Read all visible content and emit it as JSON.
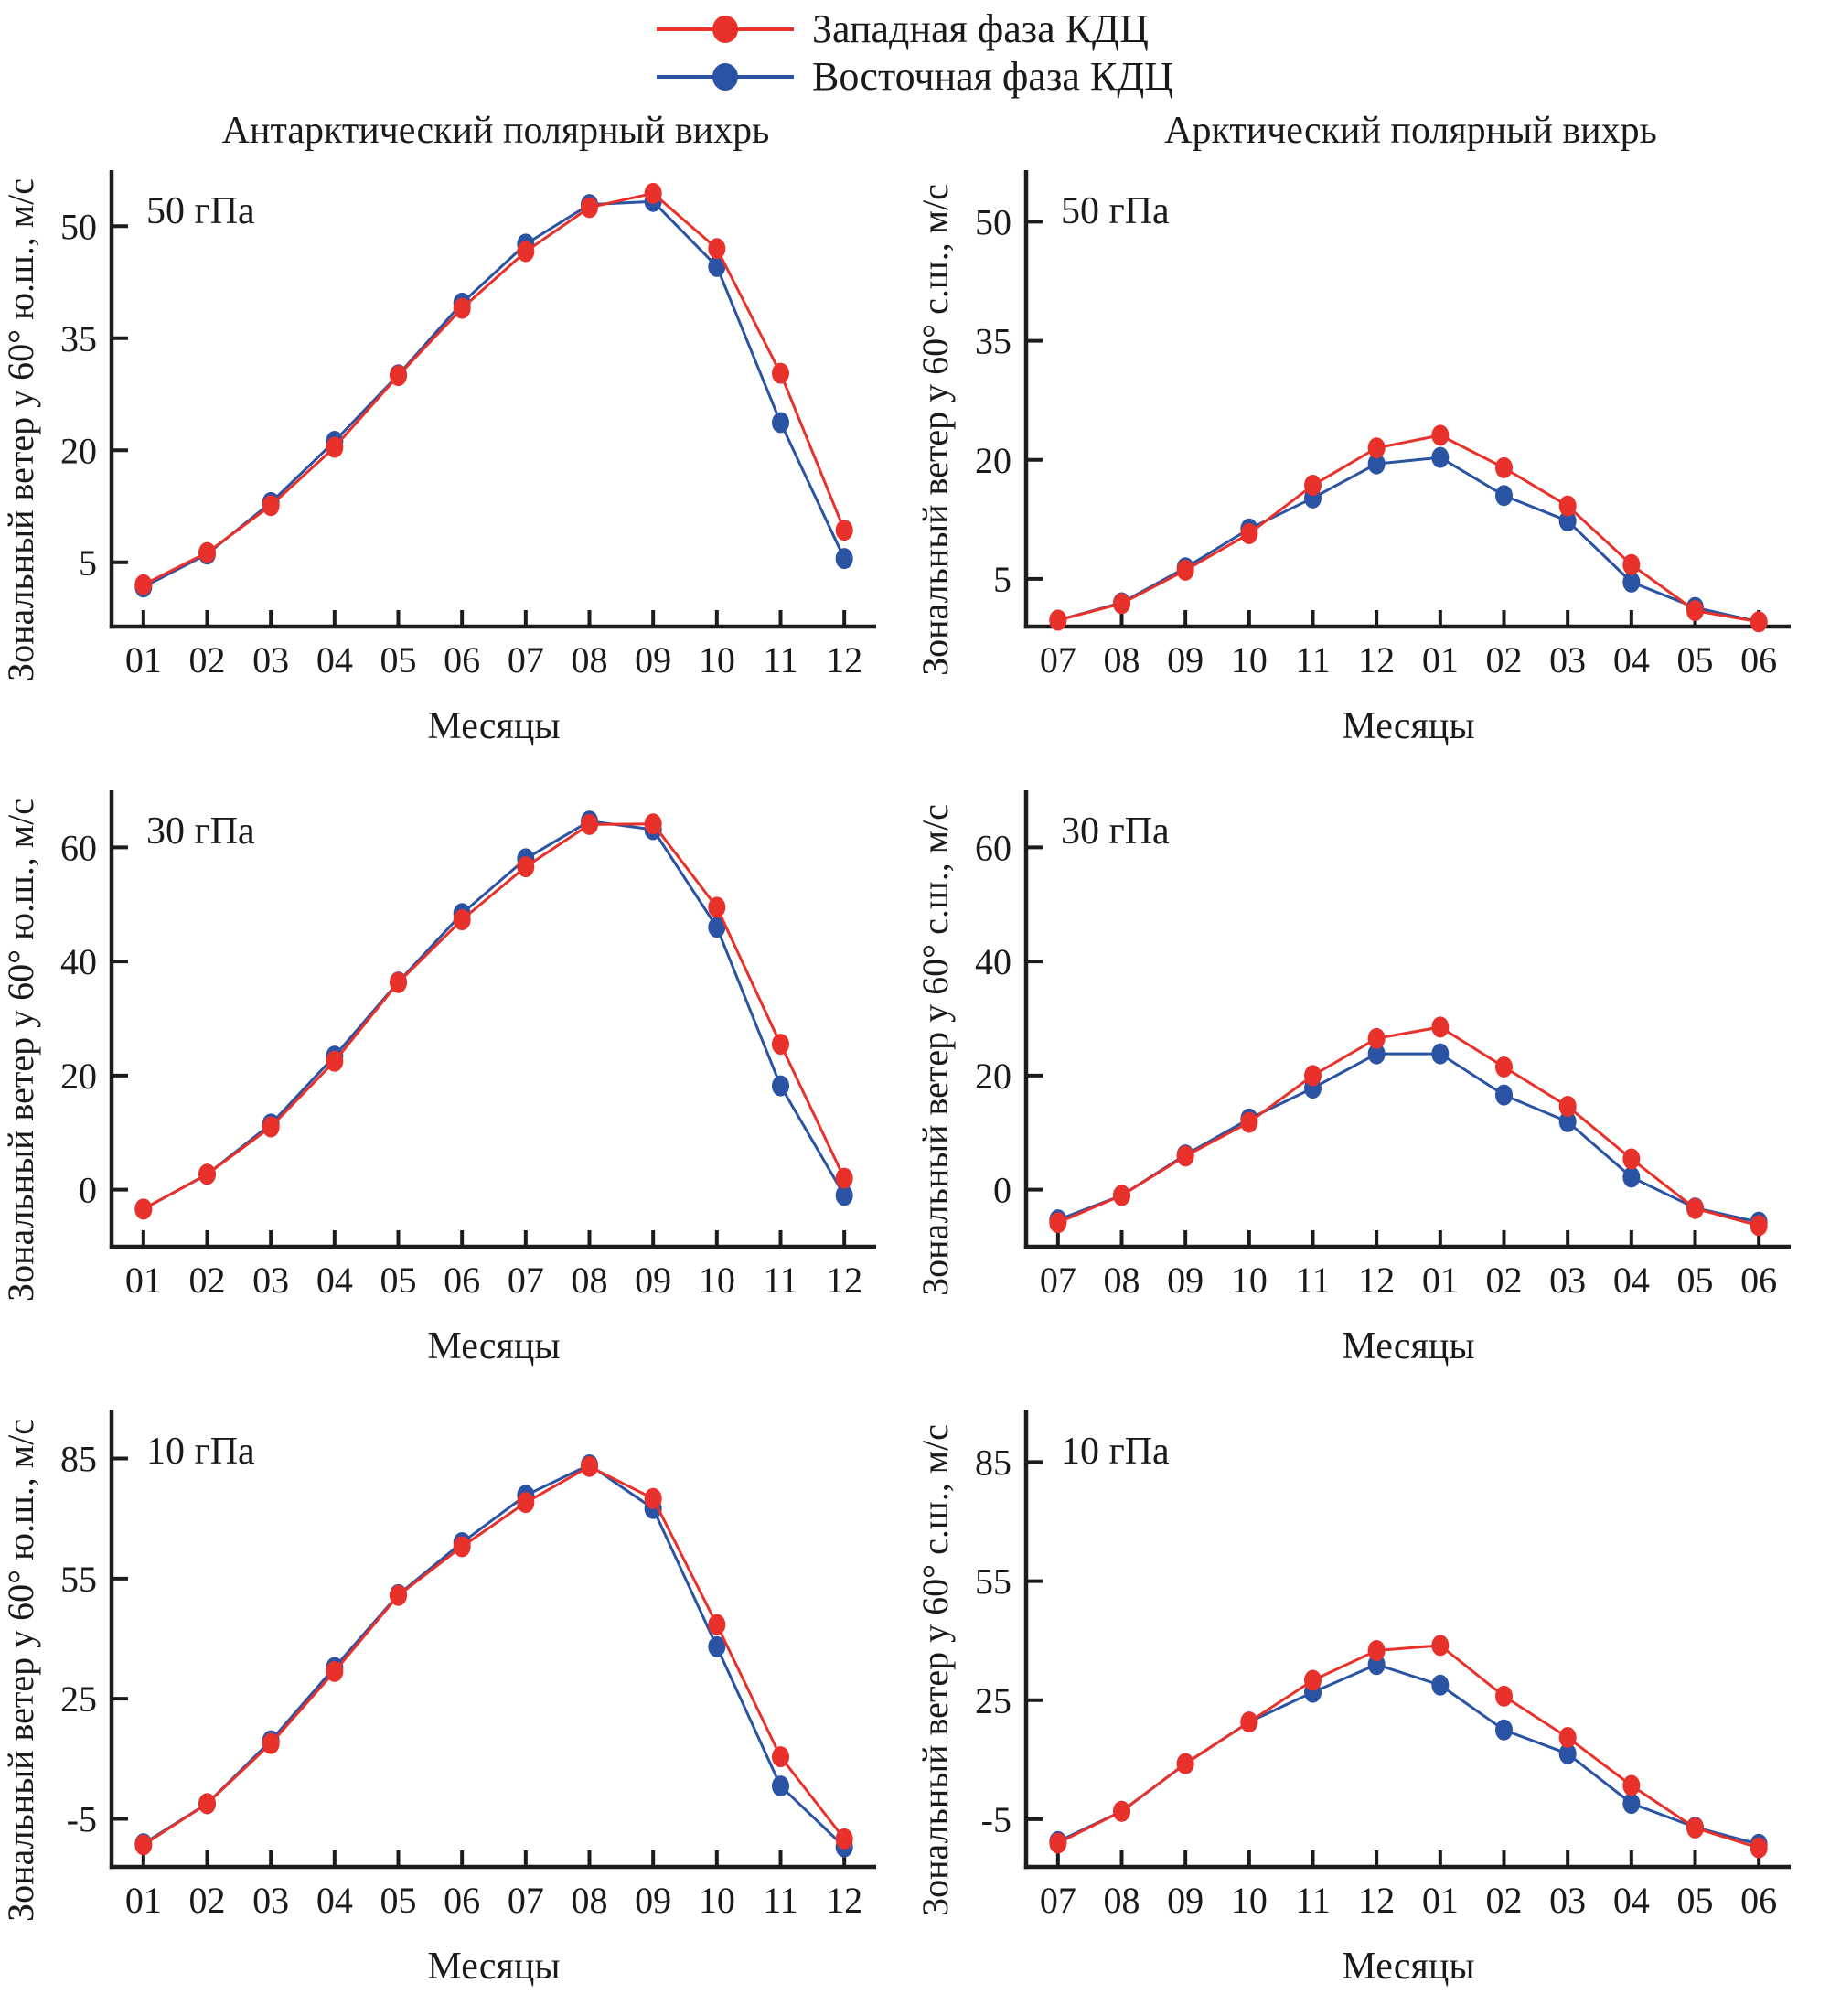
{
  "legend": {
    "items": [
      {
        "label": "Западная фаза КДЦ",
        "color": "#e8312a"
      },
      {
        "label": "Восточная фаза КДЦ",
        "color": "#2b53a3"
      }
    ]
  },
  "columns": [
    {
      "title": "Антарктический полярный вихрь"
    },
    {
      "title": "Арктический полярный вихрь"
    }
  ],
  "chart_data": [
    {
      "type": "line",
      "panel_label": "50 гПа",
      "ylabel": "Зональный ветер у 60° ю.ш., м/с",
      "xlabel": "Месяцы",
      "categories": [
        "01",
        "02",
        "03",
        "04",
        "05",
        "06",
        "07",
        "08",
        "09",
        "10",
        "11",
        "12"
      ],
      "yticks": [
        5,
        20,
        35,
        50
      ],
      "ylim": [
        -3.6,
        57.5
      ],
      "grid": false,
      "series": [
        {
          "name": "Западная фаза КДЦ",
          "color": "#e8312a",
          "values": [
            2.0,
            6.3,
            12.6,
            20.4,
            30.0,
            39.0,
            46.6,
            52.5,
            54.4,
            47.0,
            30.3,
            9.3
          ]
        },
        {
          "name": "Восточная фаза КДЦ",
          "color": "#2b53a3",
          "values": [
            1.7,
            6.1,
            13.0,
            21.2,
            30.1,
            39.7,
            47.6,
            52.9,
            53.3,
            44.6,
            23.7,
            5.5
          ]
        }
      ]
    },
    {
      "type": "line",
      "panel_label": "50 гПа",
      "ylabel": "Зональный ветер у 60° с.ш., м/с",
      "xlabel": "Месяцы",
      "categories": [
        "07",
        "08",
        "09",
        "10",
        "11",
        "12",
        "01",
        "02",
        "03",
        "04",
        "05",
        "06"
      ],
      "yticks": [
        5,
        20,
        35,
        50
      ],
      "ylim": [
        -1.0,
        56.5
      ],
      "grid": false,
      "series": [
        {
          "name": "Западная фаза КДЦ",
          "color": "#e8312a",
          "values": [
            -0.2,
            1.9,
            6.1,
            10.7,
            16.8,
            21.5,
            23.1,
            19.0,
            14.2,
            6.8,
            1.0,
            -0.4
          ]
        },
        {
          "name": "Восточная фаза КДЦ",
          "color": "#2b53a3",
          "values": [
            -0.2,
            2.0,
            6.4,
            11.3,
            15.2,
            19.5,
            20.3,
            15.5,
            12.3,
            4.6,
            1.4,
            -0.4
          ]
        }
      ]
    },
    {
      "type": "line",
      "panel_label": "30 гПа",
      "ylabel": "Зональный ветер у 60° ю.ш., м/с",
      "xlabel": "Месяцы",
      "categories": [
        "01",
        "02",
        "03",
        "04",
        "05",
        "06",
        "07",
        "08",
        "09",
        "10",
        "11",
        "12"
      ],
      "yticks": [
        0,
        20,
        40,
        60
      ],
      "ylim": [
        -10,
        70
      ],
      "grid": false,
      "series": [
        {
          "name": "Западная фаза КДЦ",
          "color": "#e8312a",
          "values": [
            -3.4,
            2.7,
            11.0,
            22.5,
            36.3,
            47.3,
            56.6,
            64.0,
            64.1,
            49.5,
            25.5,
            2.0
          ]
        },
        {
          "name": "Восточная фаза КДЦ",
          "color": "#2b53a3",
          "values": [
            -3.4,
            2.7,
            11.5,
            23.4,
            36.4,
            48.4,
            58.0,
            64.6,
            63.1,
            46.0,
            18.2,
            -1.0
          ]
        }
      ]
    },
    {
      "type": "line",
      "panel_label": "30 гПа",
      "ylabel": "Зональный ветер у 60° с.ш., м/с",
      "xlabel": "Месяцы",
      "categories": [
        "07",
        "08",
        "09",
        "10",
        "11",
        "12",
        "01",
        "02",
        "03",
        "04",
        "05",
        "06"
      ],
      "yticks": [
        0,
        20,
        40,
        60
      ],
      "ylim": [
        -10,
        70
      ],
      "grid": false,
      "series": [
        {
          "name": "Западная фаза КДЦ",
          "color": "#e8312a",
          "values": [
            -5.8,
            -1.0,
            5.9,
            11.8,
            20.0,
            26.5,
            28.5,
            21.5,
            14.6,
            5.4,
            -3.3,
            -6.3
          ]
        },
        {
          "name": "Восточная фаза КДЦ",
          "color": "#2b53a3",
          "values": [
            -5.3,
            -1.0,
            6.1,
            12.4,
            17.8,
            23.8,
            23.8,
            16.6,
            11.9,
            2.2,
            -3.2,
            -5.7
          ]
        }
      ]
    },
    {
      "type": "line",
      "panel_label": "10 гПа",
      "ylabel": "Зональный ветер у 60° ю.ш., м/с",
      "xlabel": "Месяцы",
      "categories": [
        "01",
        "02",
        "03",
        "04",
        "05",
        "06",
        "07",
        "08",
        "09",
        "10",
        "11",
        "12"
      ],
      "yticks": [
        -5,
        25,
        55,
        85
      ],
      "ylim": [
        -17,
        97
      ],
      "grid": false,
      "series": [
        {
          "name": "Западная фаза КДЦ",
          "color": "#e8312a",
          "values": [
            -11.5,
            -1.2,
            13.8,
            31.8,
            50.8,
            63.0,
            74.0,
            83.0,
            75.0,
            43.5,
            10.5,
            -10.0
          ]
        },
        {
          "name": "Восточная фаза КДЦ",
          "color": "#2b53a3",
          "values": [
            -11.2,
            -1.2,
            14.5,
            32.8,
            51.0,
            64.0,
            75.8,
            83.4,
            72.5,
            38.0,
            3.2,
            -12.0
          ]
        }
      ]
    },
    {
      "type": "line",
      "panel_label": "10 гПа",
      "ylabel": "Зональный ветер у 60° с.ш., м/с",
      "xlabel": "Месяцы",
      "categories": [
        "07",
        "08",
        "09",
        "10",
        "11",
        "12",
        "01",
        "02",
        "03",
        "04",
        "05",
        "06"
      ],
      "yticks": [
        -5,
        25,
        55,
        85
      ],
      "ylim": [
        -17,
        98
      ],
      "grid": false,
      "series": [
        {
          "name": "Западная фаза КДЦ",
          "color": "#e8312a",
          "values": [
            -11.0,
            -3.0,
            9.0,
            19.5,
            30.0,
            37.5,
            38.8,
            26.0,
            15.6,
            3.5,
            -7.2,
            -12.2
          ]
        },
        {
          "name": "Восточная фаза КДЦ",
          "color": "#2b53a3",
          "values": [
            -10.6,
            -3.0,
            9.0,
            19.5,
            27.0,
            34.0,
            28.8,
            17.5,
            11.5,
            -1.0,
            -7.0,
            -11.3
          ]
        }
      ]
    }
  ]
}
